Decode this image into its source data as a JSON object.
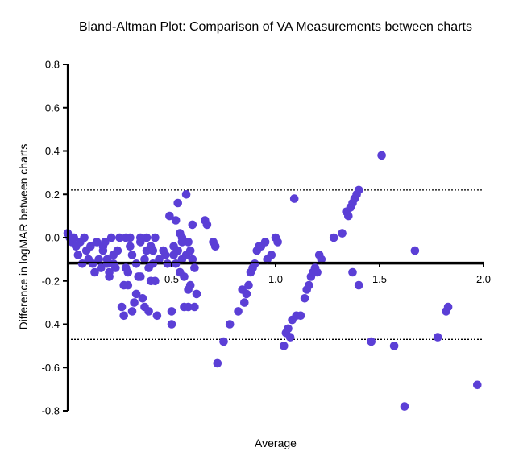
{
  "chart_data": {
    "type": "scatter",
    "title": "Bland-Altman Plot: Comparison of VA Measurements between charts",
    "xlabel": "Average",
    "ylabel": "Difference in logMAR between charts",
    "xlim": [
      0,
      2.0
    ],
    "ylim": [
      -0.8,
      0.8
    ],
    "xticks": [
      "0.5",
      "1.0",
      "1.5",
      "2.0"
    ],
    "yticks": [
      "0.8",
      "0.6",
      "0.4",
      "0.2",
      "0.0",
      "-0.2",
      "-0.4",
      "-0.6",
      "-0.8"
    ],
    "grid": false,
    "point_color": "#5b3fd6",
    "reference_lines": [
      {
        "y": -0.12,
        "style": "solid"
      },
      {
        "y": 0.22,
        "style": "dotted"
      },
      {
        "y": -0.47,
        "style": "dotted"
      }
    ],
    "points": [
      [
        0.0,
        0.02
      ],
      [
        0.01,
        0.0
      ],
      [
        0.02,
        -0.02
      ],
      [
        0.03,
        0.0
      ],
      [
        0.04,
        -0.04
      ],
      [
        0.05,
        -0.08
      ],
      [
        0.06,
        -0.02
      ],
      [
        0.07,
        -0.12
      ],
      [
        0.08,
        0.0
      ],
      [
        0.09,
        -0.06
      ],
      [
        0.1,
        -0.1
      ],
      [
        0.11,
        -0.04
      ],
      [
        0.12,
        -0.12
      ],
      [
        0.13,
        -0.16
      ],
      [
        0.14,
        -0.02
      ],
      [
        0.15,
        -0.1
      ],
      [
        0.16,
        -0.14
      ],
      [
        0.17,
        -0.06
      ],
      [
        0.18,
        -0.02
      ],
      [
        0.19,
        -0.12
      ],
      [
        0.2,
        -0.18
      ],
      [
        0.21,
        0.0
      ],
      [
        0.22,
        -0.08
      ],
      [
        0.23,
        -0.14
      ],
      [
        0.17,
        -0.04
      ],
      [
        0.19,
        -0.1
      ],
      [
        0.2,
        -0.16
      ],
      [
        0.22,
        -0.12
      ],
      [
        0.24,
        -0.06
      ],
      [
        0.25,
        0.0
      ],
      [
        0.26,
        -0.32
      ],
      [
        0.27,
        -0.36
      ],
      [
        0.28,
        -0.14
      ],
      [
        0.29,
        -0.22
      ],
      [
        0.3,
        -0.04
      ],
      [
        0.31,
        -0.08
      ],
      [
        0.32,
        -0.3
      ],
      [
        0.33,
        -0.12
      ],
      [
        0.34,
        -0.18
      ],
      [
        0.35,
        -0.02
      ],
      [
        0.36,
        -0.28
      ],
      [
        0.37,
        -0.1
      ],
      [
        0.38,
        -0.06
      ],
      [
        0.39,
        -0.34
      ],
      [
        0.4,
        -0.2
      ],
      [
        0.41,
        -0.12
      ],
      [
        0.42,
        0.0
      ],
      [
        0.43,
        -0.36
      ],
      [
        0.44,
        -0.1
      ],
      [
        0.27,
        -0.22
      ],
      [
        0.29,
        -0.16
      ],
      [
        0.31,
        -0.34
      ],
      [
        0.33,
        -0.26
      ],
      [
        0.35,
        -0.18
      ],
      [
        0.37,
        -0.32
      ],
      [
        0.38,
        -0.0
      ],
      [
        0.39,
        -0.14
      ],
      [
        0.4,
        -0.04
      ],
      [
        0.41,
        -0.06
      ],
      [
        0.42,
        -0.2
      ],
      [
        0.35,
        0.0
      ],
      [
        0.3,
        0.0
      ],
      [
        0.28,
        0.0
      ],
      [
        0.46,
        -0.06
      ],
      [
        0.47,
        -0.08
      ],
      [
        0.48,
        -0.12
      ],
      [
        0.49,
        0.1
      ],
      [
        0.5,
        -0.34
      ],
      [
        0.51,
        -0.04
      ],
      [
        0.52,
        -0.12
      ],
      [
        0.53,
        0.16
      ],
      [
        0.54,
        0.02
      ],
      [
        0.55,
        -0.1
      ],
      [
        0.56,
        -0.18
      ],
      [
        0.57,
        0.2
      ],
      [
        0.58,
        -0.02
      ],
      [
        0.59,
        -0.22
      ],
      [
        0.6,
        0.06
      ],
      [
        0.61,
        -0.14
      ],
      [
        0.5,
        -0.4
      ],
      [
        0.52,
        0.08
      ],
      [
        0.53,
        -0.06
      ],
      [
        0.54,
        -0.16
      ],
      [
        0.55,
        0.0
      ],
      [
        0.56,
        -0.32
      ],
      [
        0.57,
        -0.08
      ],
      [
        0.58,
        -0.32
      ],
      [
        0.59,
        -0.06
      ],
      [
        0.6,
        -0.1
      ],
      [
        0.61,
        -0.32
      ],
      [
        0.62,
        -0.26
      ],
      [
        0.51,
        -0.08
      ],
      [
        0.55,
        -0.02
      ],
      [
        0.58,
        -0.24
      ],
      [
        0.66,
        0.08
      ],
      [
        0.67,
        0.06
      ],
      [
        0.7,
        -0.02
      ],
      [
        0.71,
        -0.04
      ],
      [
        0.72,
        -0.58
      ],
      [
        0.75,
        -0.48
      ],
      [
        0.78,
        -0.4
      ],
      [
        0.82,
        -0.34
      ],
      [
        0.84,
        -0.24
      ],
      [
        0.85,
        -0.3
      ],
      [
        0.86,
        -0.26
      ],
      [
        0.87,
        -0.22
      ],
      [
        0.88,
        -0.16
      ],
      [
        0.89,
        -0.14
      ],
      [
        0.9,
        -0.12
      ],
      [
        0.91,
        -0.06
      ],
      [
        0.92,
        -0.04
      ],
      [
        0.93,
        -0.04
      ],
      [
        0.95,
        -0.02
      ],
      [
        0.96,
        -0.1
      ],
      [
        0.98,
        -0.08
      ],
      [
        1.0,
        0.0
      ],
      [
        1.01,
        -0.02
      ],
      [
        1.04,
        -0.5
      ],
      [
        1.05,
        -0.44
      ],
      [
        1.06,
        -0.42
      ],
      [
        1.07,
        -0.46
      ],
      [
        1.08,
        -0.38
      ],
      [
        1.1,
        -0.36
      ],
      [
        1.12,
        -0.36
      ],
      [
        1.14,
        -0.28
      ],
      [
        1.15,
        -0.24
      ],
      [
        1.16,
        -0.22
      ],
      [
        1.17,
        -0.18
      ],
      [
        1.18,
        -0.16
      ],
      [
        1.19,
        -0.14
      ],
      [
        1.2,
        -0.16
      ],
      [
        1.21,
        -0.08
      ],
      [
        1.22,
        -0.1
      ],
      [
        1.09,
        0.18
      ],
      [
        1.28,
        0.0
      ],
      [
        1.32,
        0.02
      ],
      [
        1.34,
        0.12
      ],
      [
        1.35,
        0.1
      ],
      [
        1.36,
        0.14
      ],
      [
        1.37,
        0.16
      ],
      [
        1.38,
        0.18
      ],
      [
        1.39,
        0.2
      ],
      [
        1.4,
        0.22
      ],
      [
        1.37,
        -0.16
      ],
      [
        1.4,
        -0.22
      ],
      [
        1.46,
        -0.48
      ],
      [
        1.51,
        0.38
      ],
      [
        1.57,
        -0.5
      ],
      [
        1.62,
        -0.78
      ],
      [
        1.67,
        -0.06
      ],
      [
        1.78,
        -0.46
      ],
      [
        1.82,
        -0.34
      ],
      [
        1.83,
        -0.32
      ],
      [
        1.97,
        -0.68
      ]
    ]
  }
}
